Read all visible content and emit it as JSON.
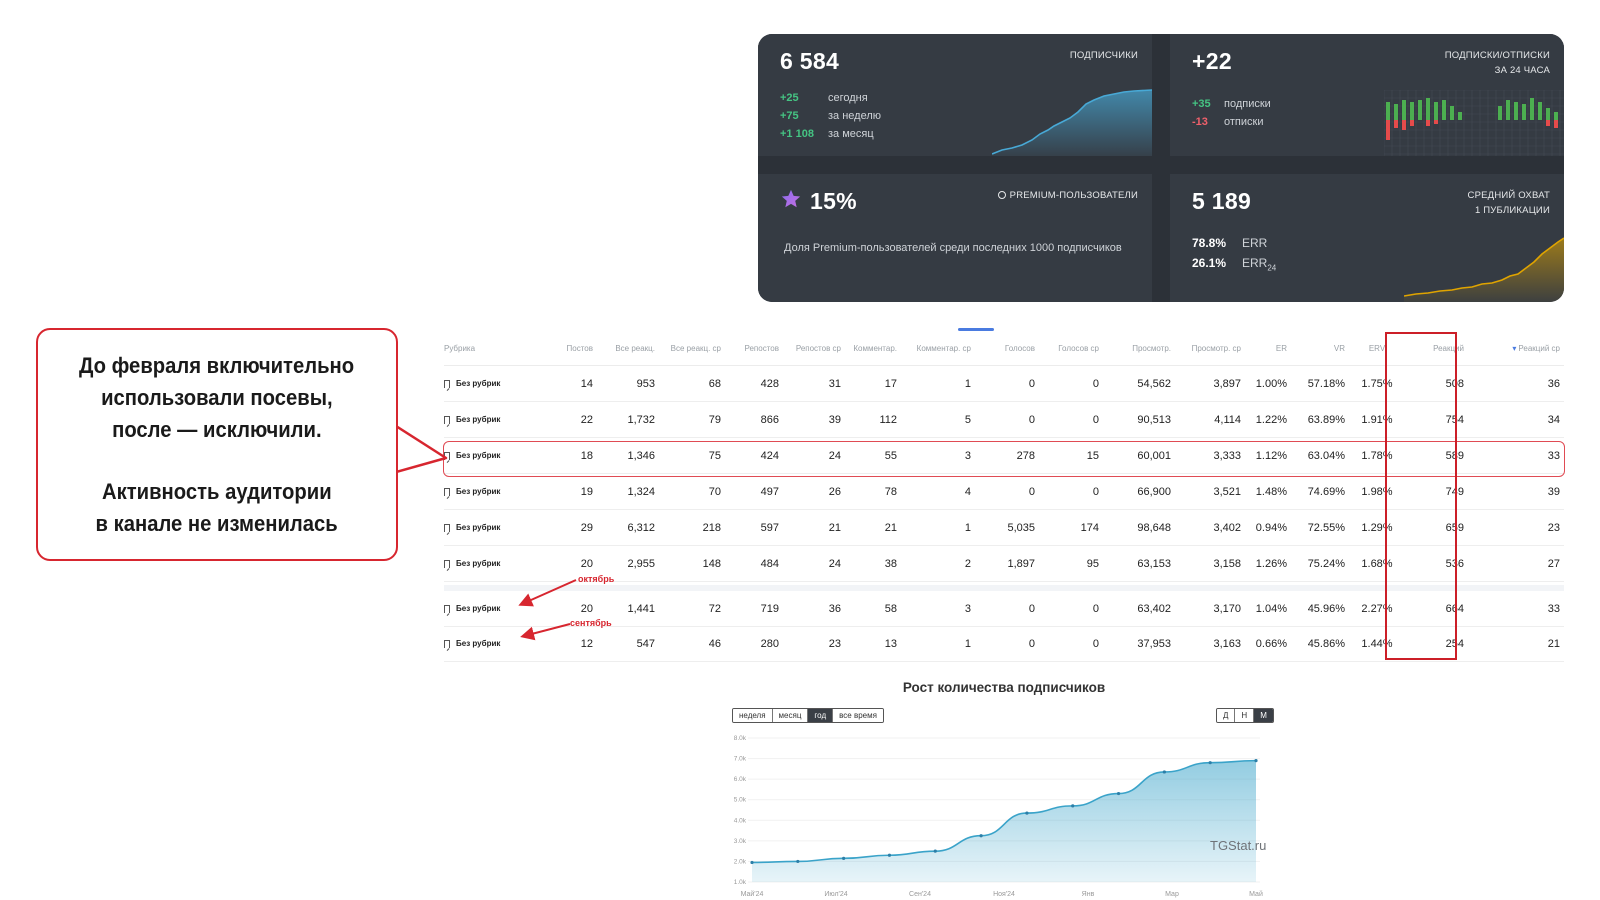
{
  "stats": {
    "subscribers": {
      "value": "6 584",
      "label": "ПОДПИСЧИКИ",
      "rows": [
        {
          "value": "+25",
          "label": "сегодня"
        },
        {
          "value": "+75",
          "label": "за неделю"
        },
        {
          "value": "+1 108",
          "label": "за месяц"
        }
      ]
    },
    "subs_unsubs": {
      "value": "+22",
      "label_line1": "ПОДПИСКИ/ОТПИСКИ",
      "label_line2": "ЗА 24 ЧАСА",
      "rows": [
        {
          "value": "+35",
          "label": "подписки"
        },
        {
          "value": "-13",
          "label": "отписки"
        }
      ]
    },
    "premium": {
      "value": "15%",
      "label": "PREMIUM-ПОЛЬЗОВАТЕЛИ",
      "description": "Доля Premium-пользователей среди последних 1000 подписчиков"
    },
    "reach": {
      "value": "5 189",
      "label_line1": "СРЕДНИЙ ОХВАТ",
      "label_line2": "1 ПУБЛИКАЦИИ",
      "err": {
        "value": "78.8%",
        "label": "ERR"
      },
      "err24": {
        "value": "26.1%",
        "label": "ERR",
        "sub": "24"
      }
    }
  },
  "table": {
    "headers": [
      "Рубрика",
      "Постов",
      "Все реакц.",
      "Все реакц. ср",
      "Репостов",
      "Репостов ср",
      "Комментар.",
      "Комментар. ср",
      "Голосов",
      "Голосов ср",
      "Просмотр.",
      "Просмотр. ср",
      "ER",
      "VR",
      "ERV",
      "Реакций",
      "Реакций ср"
    ],
    "rows": [
      [
        "Без рубрик",
        "14",
        "953",
        "68",
        "428",
        "31",
        "17",
        "1",
        "0",
        "0",
        "54,562",
        "3,897",
        "1.00%",
        "57.18%",
        "1.75%",
        "508",
        "36"
      ],
      [
        "Без рубрик",
        "22",
        "1,732",
        "79",
        "866",
        "39",
        "112",
        "5",
        "0",
        "0",
        "90,513",
        "4,114",
        "1.22%",
        "63.89%",
        "1.91%",
        "754",
        "34"
      ],
      [
        "Без рубрик",
        "18",
        "1,346",
        "75",
        "424",
        "24",
        "55",
        "3",
        "278",
        "15",
        "60,001",
        "3,333",
        "1.12%",
        "63.04%",
        "1.78%",
        "589",
        "33"
      ],
      [
        "Без рубрик",
        "19",
        "1,324",
        "70",
        "497",
        "26",
        "78",
        "4",
        "0",
        "0",
        "66,900",
        "3,521",
        "1.48%",
        "74.69%",
        "1.98%",
        "749",
        "39"
      ],
      [
        "Без рубрик",
        "29",
        "6,312",
        "218",
        "597",
        "21",
        "21",
        "1",
        "5,035",
        "174",
        "98,648",
        "3,402",
        "0.94%",
        "72.55%",
        "1.29%",
        "659",
        "23"
      ],
      [
        "Без рубрик",
        "20",
        "2,955",
        "148",
        "484",
        "24",
        "38",
        "2",
        "1,897",
        "95",
        "63,153",
        "3,158",
        "1.26%",
        "75.24%",
        "1.68%",
        "536",
        "27"
      ],
      [
        "Без рубрик",
        "20",
        "1,441",
        "72",
        "719",
        "36",
        "58",
        "3",
        "0",
        "0",
        "63,402",
        "3,170",
        "1.04%",
        "45.96%",
        "2.27%",
        "664",
        "33"
      ],
      [
        "Без рубрик",
        "12",
        "547",
        "46",
        "280",
        "23",
        "13",
        "1",
        "0",
        "0",
        "37,953",
        "3,163",
        "0.66%",
        "45.86%",
        "1.44%",
        "254",
        "21"
      ]
    ]
  },
  "callout": {
    "line1": "До февраля включительно",
    "line2": "использовали посевы,",
    "line3": "после — исключили.",
    "line4": "Активность аудитории",
    "line5": "в канале не изменилась"
  },
  "annotations": {
    "october": "октябрь",
    "september": "сентябрь"
  },
  "growth": {
    "title": "Рост количества подписчиков",
    "period_buttons": [
      "неделя",
      "месяц",
      "год",
      "все время"
    ],
    "active_period": "год",
    "scale_buttons": [
      "Д",
      "Н",
      "М"
    ],
    "active_scale": "М",
    "watermark": "TGStat.ru",
    "chart_data": {
      "type": "area",
      "y_ticks": [
        "8.0k",
        "7.0k",
        "6.0k",
        "5.0k",
        "4.0k",
        "3.0k",
        "2.0k",
        "1.0k"
      ],
      "x_ticks": [
        "Май'24",
        "Июл'24",
        "Сен'24",
        "Ноя'24",
        "Янв",
        "Мар",
        "Май"
      ],
      "ylim": [
        1000,
        8000
      ],
      "values": [
        1950,
        2000,
        2150,
        2300,
        2500,
        3250,
        4350,
        4700,
        5300,
        6350,
        6800,
        6900
      ],
      "color": "#3aa3c9"
    }
  },
  "sparks": {
    "subs_color": "#48a9d6",
    "reach_color": "#e0a400",
    "plus_color": "#4caf50",
    "minus_color": "#e54b4b"
  }
}
